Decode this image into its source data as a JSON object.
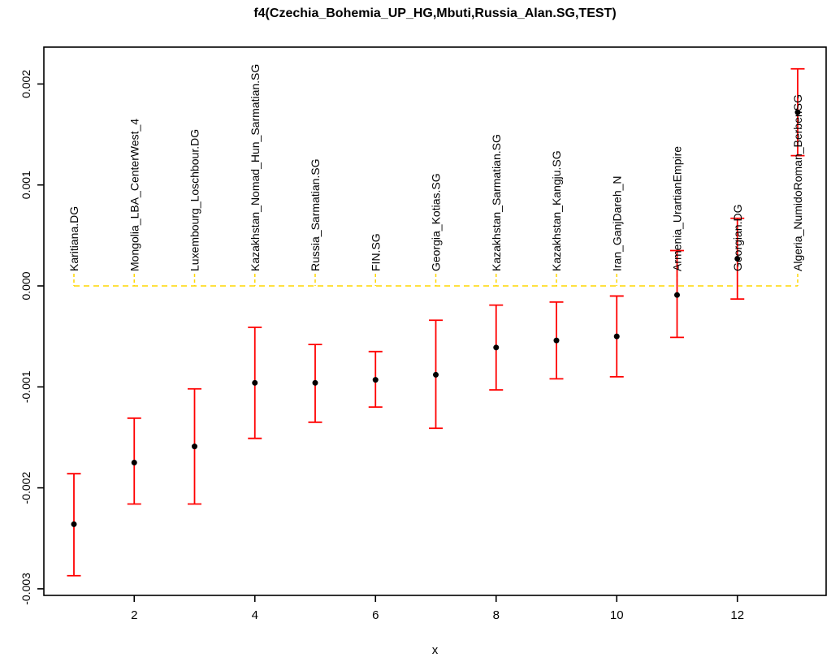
{
  "figure": {
    "title": "f4(Czechia_Bohemia_UP_HG,Mbuti,Russia_Alan.SG,TEST)",
    "xlabel": "x"
  },
  "chart_data": {
    "type": "scatter",
    "title": "f4(Czechia_Bohemia_UP_HG,Mbuti,Russia_Alan.SG,TEST)",
    "xlabel": "x",
    "ylabel": "",
    "xlim": [
      0.5,
      13.5
    ],
    "ylim": [
      -0.00306,
      0.00236
    ],
    "xticks": [
      2,
      4,
      6,
      8,
      10,
      12
    ],
    "ytick_labels": [
      "0.002",
      "0.001",
      "0.000",
      "-0.001",
      "-0.002",
      "-0.003"
    ],
    "ytick_values": [
      0.002,
      0.001,
      0.0,
      -0.001,
      -0.002,
      -0.003
    ],
    "grid": false,
    "legend": "none",
    "zero_line": {
      "y": 0,
      "style": "dashed",
      "color": "#FFD700"
    },
    "colors": {
      "errorbar": "#FF0000",
      "point": "#000000",
      "axis": "#000000",
      "dashed_line": "#FFD700"
    },
    "points": [
      {
        "x": 1,
        "label": "Karitiana.DG",
        "est": -0.00236,
        "lo": -0.00287,
        "hi": -0.00186
      },
      {
        "x": 2,
        "label": "Mongolia_LBA_CenterWest_4",
        "est": -0.00175,
        "lo": -0.00216,
        "hi": -0.00131
      },
      {
        "x": 3,
        "label": "Luxembourg_Loschbour.DG",
        "est": -0.00159,
        "lo": -0.00216,
        "hi": -0.00102
      },
      {
        "x": 4,
        "label": "Kazakhstan_Nomad_Hun_Sarmatian.SG",
        "est": -0.00096,
        "lo": -0.00151,
        "hi": -0.00041
      },
      {
        "x": 5,
        "label": "Russia_Sarmatian.SG",
        "est": -0.00096,
        "lo": -0.00135,
        "hi": -0.00058
      },
      {
        "x": 6,
        "label": "FIN.SG",
        "est": -0.00093,
        "lo": -0.0012,
        "hi": -0.00065
      },
      {
        "x": 7,
        "label": "Georgia_Kotias.SG",
        "est": -0.00088,
        "lo": -0.00141,
        "hi": -0.00034
      },
      {
        "x": 8,
        "label": "Kazakhstan_Sarmatian.SG",
        "est": -0.00061,
        "lo": -0.00103,
        "hi": -0.00019
      },
      {
        "x": 9,
        "label": "Kazakhstan_Kangju.SG",
        "est": -0.00054,
        "lo": -0.00092,
        "hi": -0.00016
      },
      {
        "x": 10,
        "label": "Iran_GanjDareh_N",
        "est": -0.0005,
        "lo": -0.0009,
        "hi": -0.0001
      },
      {
        "x": 11,
        "label": "Armenia_UrartianEmpire",
        "est": -9e-05,
        "lo": -0.00051,
        "hi": 0.00035
      },
      {
        "x": 12,
        "label": "Georgian.DG",
        "est": 0.00027,
        "lo": -0.00013,
        "hi": 0.00067
      },
      {
        "x": 13,
        "label": "Algeria_NumidoRoman_Berber.SG",
        "est": 0.00172,
        "lo": 0.00129,
        "hi": 0.00215
      }
    ]
  }
}
